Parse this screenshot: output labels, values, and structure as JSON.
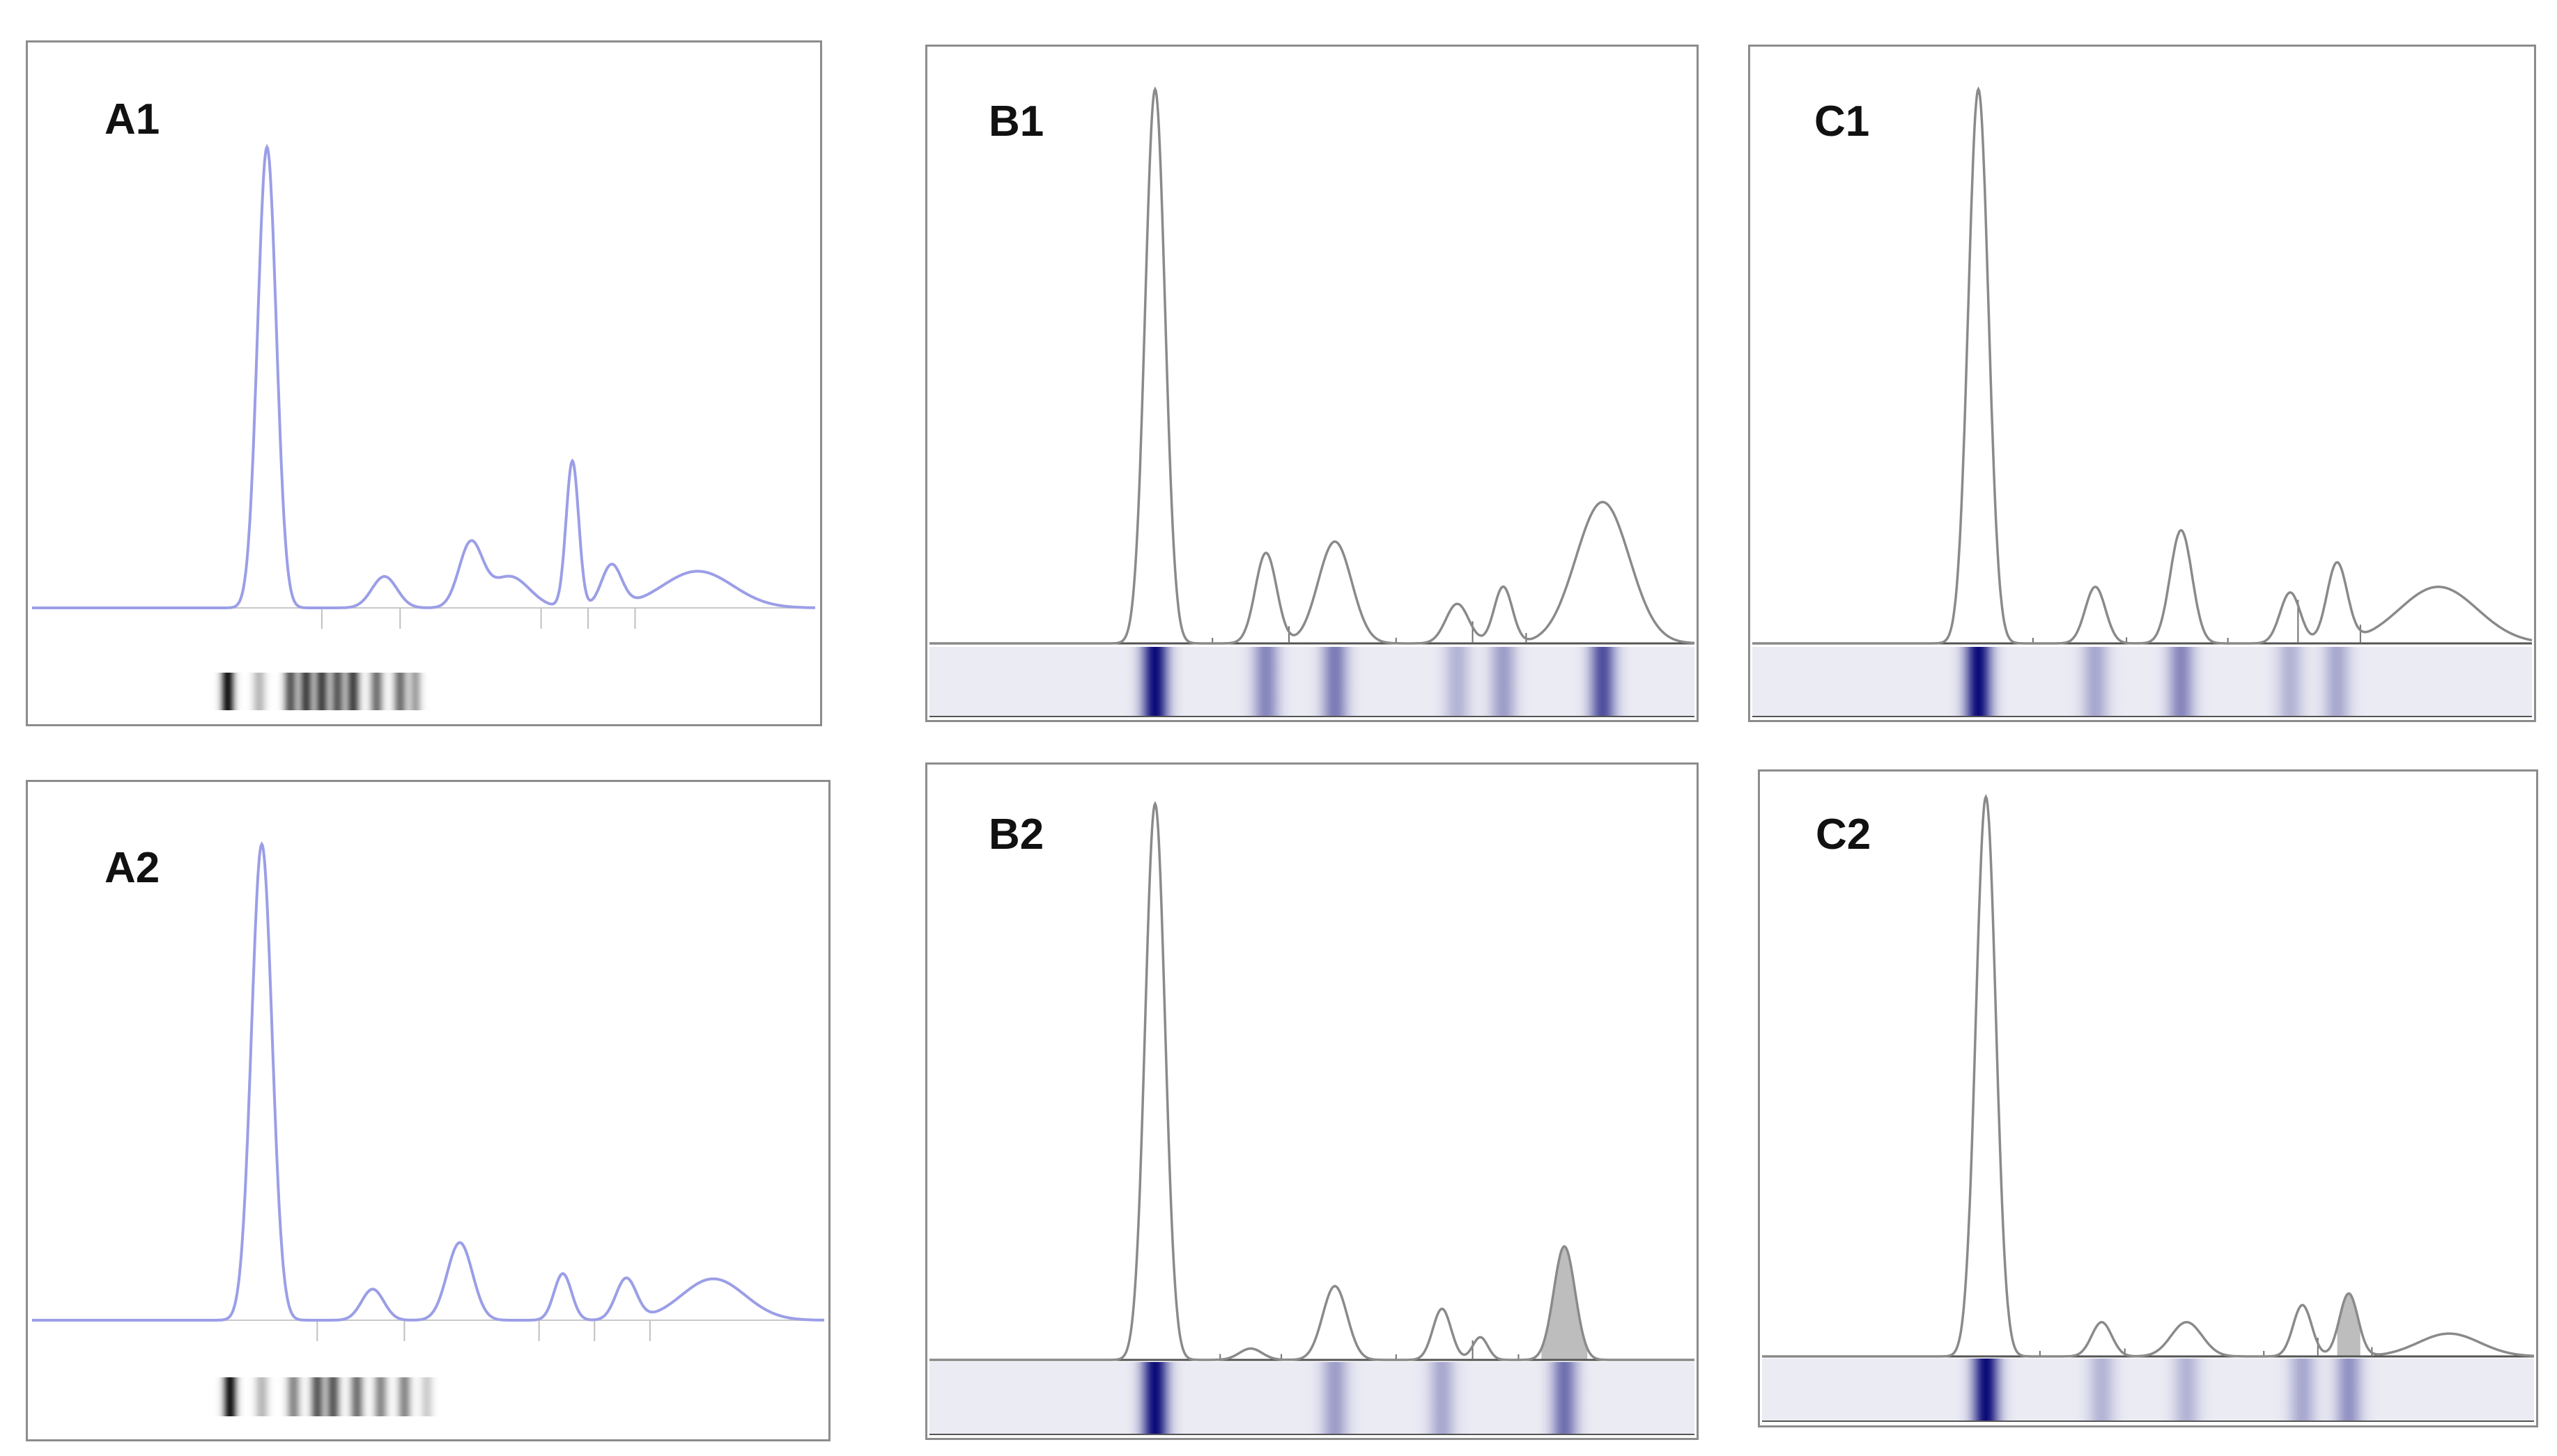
{
  "figure": {
    "panels": [
      {
        "id": "A1",
        "label": "A1"
      },
      {
        "id": "A2",
        "label": "A2"
      },
      {
        "id": "B1",
        "label": "B1"
      },
      {
        "id": "B2",
        "label": "B2"
      },
      {
        "id": "C1",
        "label": "C1"
      },
      {
        "id": "C2",
        "label": "C2"
      }
    ]
  },
  "colors": {
    "trace_a": "#9b9ee6",
    "trace_bc": "#8a8a8a",
    "gel_a": "#1a1a1a",
    "gel_bc": "#0a0a78",
    "band_shade": "#bdbdbd"
  },
  "chart_data": [
    {
      "panel": "A1",
      "type": "line",
      "title": "",
      "xlabel": "",
      "ylabel": "",
      "xlim": [
        0,
        100
      ],
      "ylim": [
        0,
        100
      ],
      "peaks": [
        {
          "x": 30,
          "height": 88,
          "width": 1.2
        },
        {
          "x": 45,
          "height": 6,
          "width": 1.6
        },
        {
          "x": 56,
          "height": 12,
          "width": 1.5
        },
        {
          "x": 61,
          "height": 6,
          "width": 2.5
        },
        {
          "x": 69,
          "height": 28,
          "width": 0.8
        },
        {
          "x": 74,
          "height": 8,
          "width": 1.3
        },
        {
          "x": 85,
          "height": 7,
          "width": 4.5
        }
      ],
      "dividers": [
        37,
        47,
        65,
        71,
        77
      ],
      "strip": {
        "x_start": 18,
        "x_end": 52,
        "bands": [
          {
            "x": 25,
            "i": 1.0
          },
          {
            "x": 29,
            "i": 0.3
          },
          {
            "x": 33,
            "i": 0.7
          },
          {
            "x": 35,
            "i": 0.8
          },
          {
            "x": 37,
            "i": 0.8
          },
          {
            "x": 39,
            "i": 0.7
          },
          {
            "x": 41,
            "i": 0.8
          },
          {
            "x": 44,
            "i": 0.6
          },
          {
            "x": 47,
            "i": 0.6
          },
          {
            "x": 49,
            "i": 0.4
          }
        ]
      }
    },
    {
      "panel": "A2",
      "type": "line",
      "title": "",
      "xlabel": "",
      "ylabel": "",
      "xlim": [
        0,
        100
      ],
      "ylim": [
        0,
        100
      ],
      "peaks": [
        {
          "x": 29,
          "height": 92,
          "width": 1.3
        },
        {
          "x": 43,
          "height": 6,
          "width": 1.4
        },
        {
          "x": 54,
          "height": 15,
          "width": 1.6
        },
        {
          "x": 67,
          "height": 9,
          "width": 1.1
        },
        {
          "x": 75,
          "height": 8,
          "width": 1.3
        },
        {
          "x": 86,
          "height": 8,
          "width": 4.0
        }
      ],
      "dividers": [
        36,
        47,
        64,
        71,
        78
      ],
      "strip": {
        "x_start": 18,
        "x_end": 52,
        "bands": [
          {
            "x": 25,
            "i": 1.0
          },
          {
            "x": 29,
            "i": 0.3
          },
          {
            "x": 33,
            "i": 0.5
          },
          {
            "x": 36,
            "i": 0.7
          },
          {
            "x": 38,
            "i": 0.7
          },
          {
            "x": 41,
            "i": 0.6
          },
          {
            "x": 44,
            "i": 0.5
          },
          {
            "x": 47,
            "i": 0.5
          },
          {
            "x": 50,
            "i": 0.3
          }
        ]
      }
    },
    {
      "panel": "B1",
      "type": "line",
      "title": "",
      "xlabel": "",
      "ylabel": "",
      "xlim": [
        0,
        100
      ],
      "ylim": [
        0,
        100
      ],
      "peaks": [
        {
          "x": 29.5,
          "height": 98,
          "width": 1.3
        },
        {
          "x": 44,
          "height": 16,
          "width": 1.4
        },
        {
          "x": 53,
          "height": 18,
          "width": 2.2
        },
        {
          "x": 69,
          "height": 7,
          "width": 1.5
        },
        {
          "x": 75,
          "height": 10,
          "width": 1.2
        },
        {
          "x": 88,
          "height": 25,
          "width": 3.5
        }
      ],
      "dividers": [
        37,
        47,
        61,
        71,
        78
      ],
      "strip": {
        "bands": [
          {
            "x": 29.5,
            "i": 1.0
          },
          {
            "x": 44,
            "i": 0.45
          },
          {
            "x": 53,
            "i": 0.5
          },
          {
            "x": 69,
            "i": 0.25
          },
          {
            "x": 75,
            "i": 0.35
          },
          {
            "x": 88,
            "i": 0.7
          }
        ]
      }
    },
    {
      "panel": "B2",
      "type": "line",
      "title": "",
      "xlabel": "",
      "ylabel": "",
      "xlim": [
        0,
        100
      ],
      "ylim": [
        0,
        100
      ],
      "peaks": [
        {
          "x": 29.5,
          "height": 98,
          "width": 1.3
        },
        {
          "x": 42,
          "height": 2,
          "width": 1.5
        },
        {
          "x": 53,
          "height": 13,
          "width": 1.6
        },
        {
          "x": 67,
          "height": 9,
          "width": 1.2
        },
        {
          "x": 72,
          "height": 4,
          "width": 1.0
        },
        {
          "x": 83,
          "height": 20,
          "width": 1.4
        }
      ],
      "dividers": [
        38,
        46,
        61,
        71,
        77
      ],
      "shaded_band": {
        "x_start": 80,
        "x_end": 86
      },
      "strip": {
        "bands": [
          {
            "x": 29.5,
            "i": 1.0
          },
          {
            "x": 53,
            "i": 0.35
          },
          {
            "x": 67,
            "i": 0.3
          },
          {
            "x": 83,
            "i": 0.55
          }
        ]
      }
    },
    {
      "panel": "C1",
      "type": "line",
      "title": "",
      "xlabel": "",
      "ylabel": "",
      "xlim": [
        0,
        100
      ],
      "ylim": [
        0,
        100
      ],
      "peaks": [
        {
          "x": 29,
          "height": 98,
          "width": 1.3
        },
        {
          "x": 44,
          "height": 10,
          "width": 1.3
        },
        {
          "x": 55,
          "height": 20,
          "width": 1.4
        },
        {
          "x": 69,
          "height": 9,
          "width": 1.3
        },
        {
          "x": 75,
          "height": 14,
          "width": 1.3
        },
        {
          "x": 88,
          "height": 10,
          "width": 5.0
        }
      ],
      "dividers": [
        36,
        48,
        61,
        70,
        78
      ],
      "strip": {
        "bands": [
          {
            "x": 29,
            "i": 1.0
          },
          {
            "x": 44,
            "i": 0.3
          },
          {
            "x": 55,
            "i": 0.45
          },
          {
            "x": 69,
            "i": 0.25
          },
          {
            "x": 75,
            "i": 0.3
          }
        ]
      }
    },
    {
      "panel": "C2",
      "type": "line",
      "title": "",
      "xlabel": "",
      "ylabel": "",
      "xlim": [
        0,
        100
      ],
      "ylim": [
        0,
        100
      ],
      "peaks": [
        {
          "x": 29,
          "height": 98,
          "width": 1.3
        },
        {
          "x": 44,
          "height": 6,
          "width": 1.3
        },
        {
          "x": 55,
          "height": 6,
          "width": 2.0
        },
        {
          "x": 70,
          "height": 9,
          "width": 1.2
        },
        {
          "x": 76,
          "height": 11,
          "width": 1.2
        },
        {
          "x": 89,
          "height": 4,
          "width": 4.0
        }
      ],
      "dividers": [
        36,
        47,
        65,
        72,
        79
      ],
      "shaded_band": {
        "x_start": 74.5,
        "x_end": 77.5
      },
      "strip": {
        "bands": [
          {
            "x": 29,
            "i": 1.0
          },
          {
            "x": 44,
            "i": 0.25
          },
          {
            "x": 55,
            "i": 0.25
          },
          {
            "x": 70,
            "i": 0.3
          },
          {
            "x": 76,
            "i": 0.4
          }
        ]
      }
    }
  ]
}
